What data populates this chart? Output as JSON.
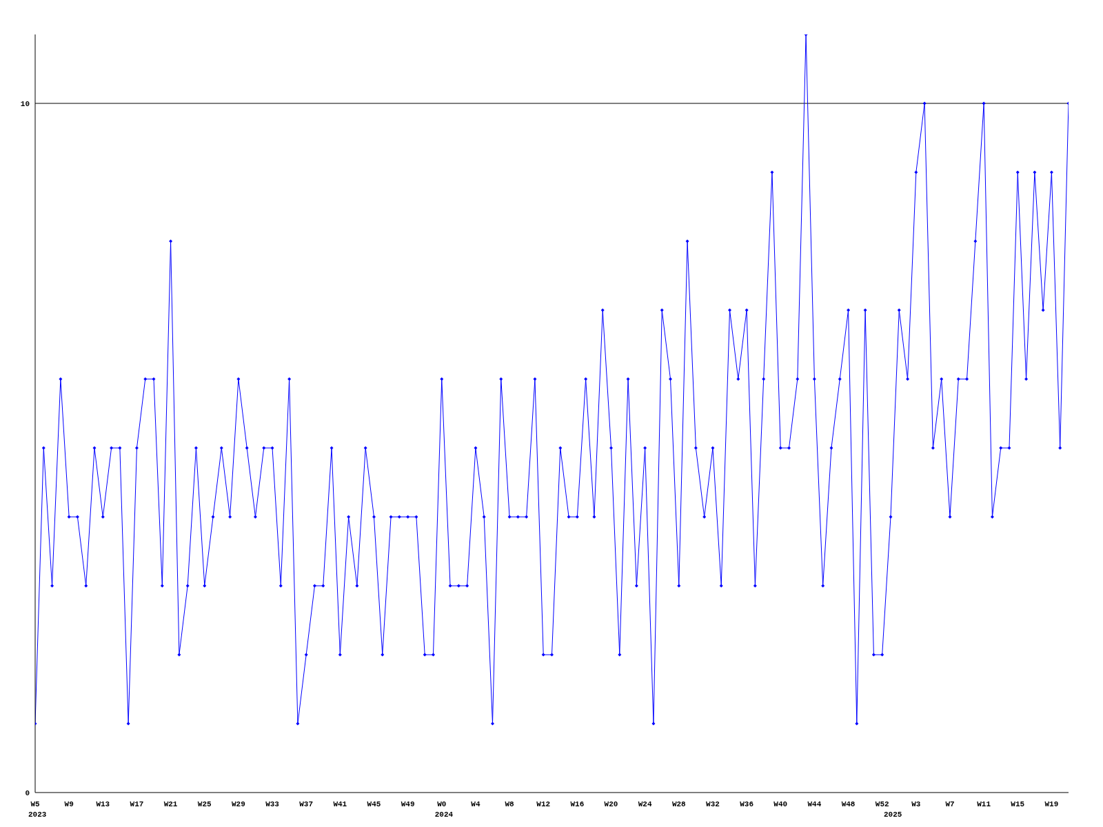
{
  "chart_data": {
    "type": "line",
    "categories": [
      "W5",
      null,
      null,
      null,
      "W9",
      null,
      null,
      null,
      "W13",
      null,
      null,
      null,
      "W17",
      null,
      null,
      null,
      "W21",
      null,
      null,
      null,
      "W25",
      null,
      null,
      null,
      "W29",
      null,
      null,
      null,
      "W33",
      null,
      null,
      null,
      "W37",
      null,
      null,
      null,
      "W41",
      null,
      null,
      null,
      "W45",
      null,
      null,
      null,
      "W49",
      null,
      null,
      null,
      "W0",
      null,
      null,
      null,
      "W4",
      null,
      null,
      null,
      "W8",
      null,
      null,
      null,
      "W12",
      null,
      null,
      null,
      "W16",
      null,
      null,
      null,
      "W20",
      null,
      null,
      null,
      "W24",
      null,
      null,
      null,
      "W28",
      null,
      null,
      null,
      "W32",
      null,
      null,
      null,
      "W36",
      null,
      null,
      null,
      "W40",
      null,
      null,
      null,
      "W44",
      null,
      null,
      null,
      "W48",
      null,
      null,
      null,
      "W52",
      null,
      null,
      null,
      "W3",
      null,
      null,
      null,
      "W7",
      null,
      null,
      null,
      "W11",
      null,
      null,
      null,
      "W15",
      null,
      null,
      null,
      "W19",
      null,
      null
    ],
    "series": [
      {
        "color": "#0000ff",
        "values": [
          1,
          5,
          3,
          6,
          4,
          4,
          3,
          5,
          4,
          5,
          5,
          1,
          5,
          6,
          6,
          3,
          8,
          2,
          3,
          5,
          3,
          4,
          5,
          4,
          6,
          5,
          4,
          5,
          5,
          3,
          6,
          1,
          2,
          3,
          3,
          5,
          2,
          4,
          3,
          5,
          4,
          2,
          4,
          4,
          4,
          4,
          2,
          2,
          6,
          3,
          3,
          3,
          5,
          4,
          1,
          6,
          4,
          4,
          4,
          6,
          2,
          2,
          5,
          4,
          4,
          6,
          4,
          7,
          5,
          2,
          6,
          3,
          5,
          1,
          7,
          6,
          3,
          8,
          5,
          4,
          5,
          3,
          7,
          6,
          7,
          3,
          6,
          9,
          5,
          5,
          6,
          11,
          6,
          3,
          5,
          6,
          7,
          1,
          7,
          2,
          2,
          4,
          7,
          6,
          9,
          10,
          5,
          6,
          4,
          6,
          6,
          8,
          10,
          4,
          5,
          5,
          9,
          6,
          9,
          7,
          9,
          5,
          10
        ]
      }
    ],
    "ylim": [
      0,
      11
    ],
    "yticks": [
      0,
      10
    ],
    "ref_lines": [
      {
        "axis": "y",
        "value": 10,
        "color": "#000000"
      }
    ],
    "annotations": [
      "2023",
      "2024",
      "2025"
    ],
    "marker": "diamond",
    "grid": false,
    "legend": false
  }
}
